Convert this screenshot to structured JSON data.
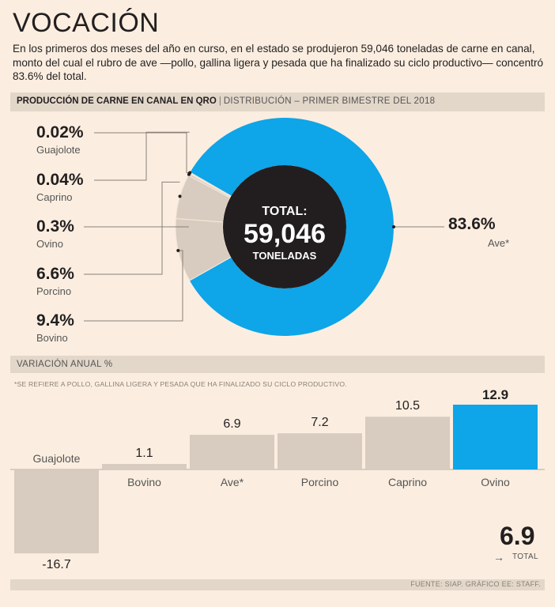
{
  "header": {
    "title": "VOCACIÓN",
    "intro": "En los primeros dos meses del año en curso, en el estado se produjeron 59,046 toneladas de carne en canal, monto del cual el rubro de ave —pollo, gallina ligera y pesada que ha finalizado su ciclo productivo— concentró 83.6% del total."
  },
  "section1": {
    "bold_title": "PRODUCCIÓN DE CARNE EN CANAL EN QRO",
    "separator": "|",
    "subtitle": "DISTRIBUCIÓN – PRIMER BIMESTRE DEL 2018"
  },
  "donut": {
    "center_line1": "TOTAL:",
    "center_line2": "59,046",
    "center_line3": "TONELADAS"
  },
  "section2": {
    "title": "VARIACIÓN ANUAL %",
    "footnote": "*SE REFIERE A POLLO, GALLINA LIGERA Y PESADA QUE HA FINALIZADO SU CICLO PRODUCTIVO."
  },
  "total_variation": {
    "value": "6.9",
    "arrow": "→",
    "label": "TOTAL"
  },
  "source": "FUENTE: SIAP.   GRÁFICO EE: STAFF.",
  "colors": {
    "accent": "#0ea5e9",
    "neutral": "#d8cbbf",
    "center": "#221e1f",
    "background": "#fbeee0",
    "band": "#e3d7c9"
  },
  "chart_data": [
    {
      "type": "pie",
      "title": "PRODUCCIÓN DE CARNE EN CANAL EN QRO",
      "subtitle": "DISTRIBUCIÓN – PRIMER BIMESTRE DEL 2018",
      "unit": "%",
      "slices": [
        {
          "label": "Ave*",
          "value": 83.6,
          "display": "83.6%",
          "highlight": true
        },
        {
          "label": "Bovino",
          "value": 9.4,
          "display": "9.4%"
        },
        {
          "label": "Porcino",
          "value": 6.6,
          "display": "6.6%"
        },
        {
          "label": "Ovino",
          "value": 0.3,
          "display": "0.3%"
        },
        {
          "label": "Caprino",
          "value": 0.04,
          "display": "0.04%"
        },
        {
          "label": "Guajolote",
          "value": 0.02,
          "display": "0.02%"
        }
      ]
    },
    {
      "type": "bar",
      "title": "VARIACIÓN ANUAL %",
      "categories": [
        "Guajolote",
        "Bovino",
        "Ave*",
        "Porcino",
        "Caprino",
        "Ovino"
      ],
      "values": [
        -16.7,
        1.1,
        6.9,
        7.2,
        10.5,
        12.9
      ],
      "labels": [
        "-16.7",
        "1.1",
        "6.9",
        "7.2",
        "10.5",
        "12.9"
      ],
      "highlight": "Ovino",
      "ylim": [
        -16.7,
        12.9
      ]
    }
  ]
}
